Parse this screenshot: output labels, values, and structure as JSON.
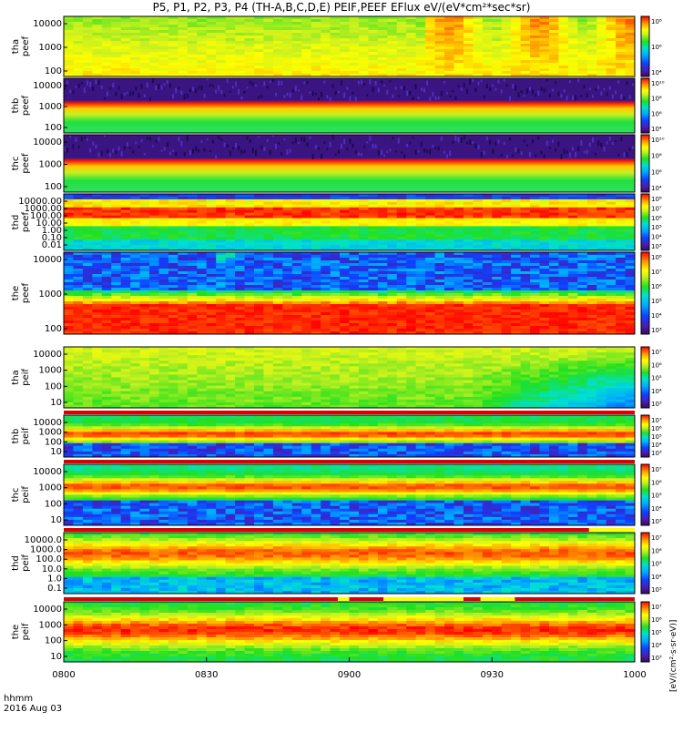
{
  "title": "P5, P1, P2, P3, P4 (TH-A,B,C,D,E) PEIF,PEEF EFlux eV/(eV*cm²*sec*sr)",
  "time_label": "hhmm",
  "date_label": "2016 Aug 03",
  "colorbar_unit": "[eV/(cm²·s·sr·eV)]",
  "colors": {
    "background": "#ffffff",
    "frame": "#000000",
    "flag_red": "#dd0000",
    "flag_yellow": "#ffff00",
    "fill_purple": "#3a1480"
  },
  "chart_data": {
    "type": "heatmap",
    "x_ticks": [
      "0800",
      "0830",
      "0900",
      "0930",
      "1000"
    ],
    "x_range": [
      "0800",
      "1000"
    ],
    "panels": [
      {
        "name": "tha peef",
        "probe": "tha",
        "product": "peef",
        "y_ticks": [
          "10000",
          "1000",
          "100"
        ],
        "cb_ticks": [
          "10⁸",
          "10⁶",
          "10⁴"
        ],
        "pattern": "esa_electron_burst_a"
      },
      {
        "name": "thb peef",
        "probe": "thb",
        "product": "peef",
        "y_ticks": [
          "10000",
          "1000",
          "100"
        ],
        "cb_ticks": [
          "10¹⁰",
          "10⁸",
          "10⁶",
          "10⁴"
        ],
        "pattern": "flat_noise_top"
      },
      {
        "name": "thc peef",
        "probe": "thc",
        "product": "peef",
        "y_ticks": [
          "10000",
          "1000",
          "100"
        ],
        "cb_ticks": [
          "10¹⁰",
          "10⁸",
          "10⁶",
          "10⁴"
        ],
        "pattern": "flat_noise_top"
      },
      {
        "name": "thd peef",
        "probe": "thd",
        "product": "peef",
        "y_ticks": [
          "10000.00",
          "1000.00",
          "100.00",
          "10.00",
          "1.00",
          "0.10",
          "0.01"
        ],
        "cb_ticks": [
          "10⁸",
          "10⁷",
          "10⁶",
          "10⁵",
          "10⁴",
          "10³"
        ],
        "pattern": "bands_low"
      },
      {
        "name": "the peef",
        "probe": "the",
        "product": "peef",
        "y_ticks": [
          "10000",
          "1000",
          "100"
        ],
        "cb_ticks": [
          "10⁸",
          "10⁷",
          "10⁶",
          "10⁵",
          "10⁴",
          "10³"
        ],
        "pattern": "electron_red_low"
      },
      {
        "name": "tha peif",
        "probe": "tha",
        "product": "peif",
        "y_ticks": [
          "10000",
          "1000",
          "100",
          "10"
        ],
        "cb_ticks": [
          "10⁷",
          "10⁶",
          "10⁵",
          "10⁴",
          "10³"
        ],
        "pattern": "ion_broad"
      },
      {
        "name": "thb peif",
        "probe": "thb",
        "product": "peif",
        "y_ticks": [
          "10000",
          "1000",
          "100",
          "10"
        ],
        "cb_ticks": [
          "10⁷",
          "10⁶",
          "10⁵",
          "10⁴",
          "10³"
        ],
        "pattern": "ion_band_noise"
      },
      {
        "name": "thc peif",
        "probe": "thc",
        "product": "peif",
        "y_ticks": [
          "10000",
          "1000",
          "100",
          "10"
        ],
        "cb_ticks": [
          "10⁷",
          "10⁶",
          "10⁵",
          "10⁴",
          "10³"
        ],
        "pattern": "ion_band_noise2"
      },
      {
        "name": "thd peif",
        "probe": "thd",
        "product": "peif",
        "y_ticks": [
          "10000.0",
          "1000.0",
          "100.0",
          "10.0",
          "1.0",
          "0.1"
        ],
        "cb_ticks": [
          "10⁷",
          "10⁶",
          "10⁵",
          "10⁴",
          "10³"
        ],
        "pattern": "ion_wide"
      },
      {
        "name": "the peif",
        "probe": "the",
        "product": "peif",
        "y_ticks": [
          "10000",
          "1000",
          "100",
          "10"
        ],
        "cb_ticks": [
          "10⁷",
          "10⁶",
          "10⁵",
          "10⁴",
          "10³"
        ],
        "pattern": "ion_red"
      }
    ]
  }
}
